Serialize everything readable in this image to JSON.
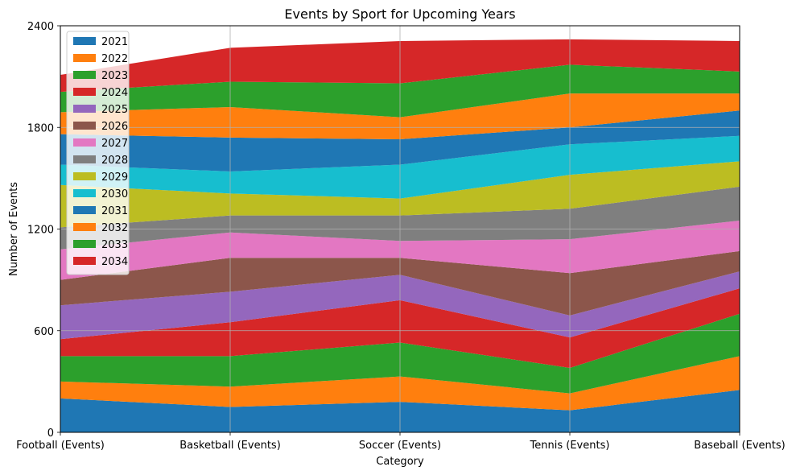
{
  "chart_data": {
    "type": "area",
    "stacked": true,
    "title": "Events by Sport for Upcoming Years",
    "xlabel": "Category",
    "ylabel": "Number of Events",
    "categories": [
      "Football (Events)",
      "Basketball (Events)",
      "Soccer (Events)",
      "Tennis (Events)",
      "Baseball (Events)"
    ],
    "ylim": [
      0,
      2400
    ],
    "yticks": [
      0,
      600,
      1200,
      1800,
      2400
    ],
    "grid": true,
    "legend_position": "top-left",
    "series": [
      {
        "name": "2021",
        "color": "#1f77b4",
        "values": [
          200,
          150,
          180,
          130,
          250
        ]
      },
      {
        "name": "2022",
        "color": "#ff7f0e",
        "values": [
          100,
          120,
          150,
          100,
          200
        ]
      },
      {
        "name": "2023",
        "color": "#2ca02c",
        "values": [
          150,
          180,
          200,
          150,
          250
        ]
      },
      {
        "name": "2024",
        "color": "#d62728",
        "values": [
          100,
          200,
          250,
          180,
          150
        ]
      },
      {
        "name": "2025",
        "color": "#9467bd",
        "values": [
          200,
          180,
          150,
          130,
          100
        ]
      },
      {
        "name": "2026",
        "color": "#8c564b",
        "values": [
          150,
          200,
          100,
          250,
          120
        ]
      },
      {
        "name": "2027",
        "color": "#e377c2",
        "values": [
          180,
          150,
          100,
          200,
          180
        ]
      },
      {
        "name": "2028",
        "color": "#7f7f7f",
        "values": [
          130,
          100,
          150,
          180,
          200
        ]
      },
      {
        "name": "2029",
        "color": "#bcbd22",
        "values": [
          250,
          130,
          100,
          200,
          150
        ]
      },
      {
        "name": "2030",
        "color": "#17becf",
        "values": [
          120,
          130,
          200,
          180,
          150
        ]
      },
      {
        "name": "2031",
        "color": "#1f77b4",
        "values": [
          180,
          200,
          150,
          100,
          150
        ]
      },
      {
        "name": "2032",
        "color": "#ff7f0e",
        "values": [
          130,
          180,
          130,
          200,
          100
        ]
      },
      {
        "name": "2033",
        "color": "#2ca02c",
        "values": [
          120,
          150,
          200,
          170,
          130
        ]
      },
      {
        "name": "2034",
        "color": "#d62728",
        "values": [
          100,
          200,
          250,
          150,
          180
        ]
      }
    ]
  }
}
